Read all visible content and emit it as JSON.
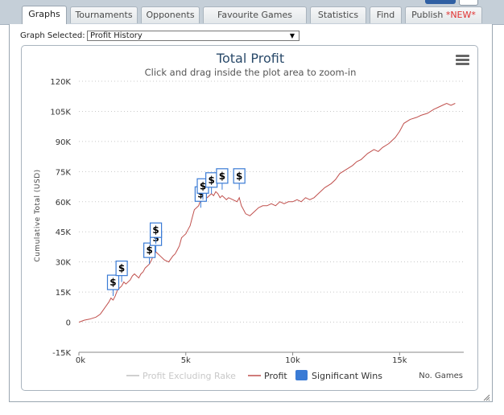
{
  "tabs": [
    {
      "label": "Graphs",
      "active": true
    },
    {
      "label": "Tournaments"
    },
    {
      "label": "Opponents"
    },
    {
      "label": "Favourite Games"
    },
    {
      "label": "Statistics"
    },
    {
      "label": "Find"
    },
    {
      "label": "Publish ",
      "badge": "*NEW*"
    }
  ],
  "graph_select": {
    "label": "Graph Selected:",
    "value": "Profit History"
  },
  "chart_data": {
    "type": "line",
    "title": "Total Profit",
    "subtitle": "Click and drag inside the plot area to zoom-in",
    "ylabel": "Cumulative Total (USD)",
    "xlabel": "No. Games",
    "x_ticks": [
      "0k",
      "5k",
      "10k",
      "15k"
    ],
    "x_tick_values": [
      0,
      5000,
      10000,
      15000
    ],
    "y_ticks": [
      "120K",
      "105K",
      "90K",
      "75K",
      "60K",
      "45K",
      "30K",
      "15K",
      "0",
      "-15K"
    ],
    "y_tick_values": [
      120000,
      105000,
      90000,
      75000,
      60000,
      45000,
      30000,
      15000,
      0,
      -15000
    ],
    "xlim": [
      0,
      18000
    ],
    "ylim": [
      -15000,
      120000
    ],
    "grid": true,
    "legend_position": "bottom-center",
    "legend": [
      {
        "name": "Profit Excluding Rake",
        "color": "#d0d0d0",
        "hidden": true
      },
      {
        "name": "Profit",
        "color": "#c0504d"
      },
      {
        "name": "Significant Wins",
        "color": "#3a7bd5"
      }
    ],
    "series": [
      {
        "name": "Profit",
        "color": "#c0504d",
        "x": [
          0,
          250,
          500,
          800,
          1000,
          1200,
          1400,
          1500,
          1600,
          1700,
          1800,
          1900,
          2000,
          2100,
          2200,
          2400,
          2500,
          2600,
          2800,
          2900,
          3000,
          3100,
          3200,
          3300,
          3400,
          3500,
          3600,
          3700,
          3800,
          3900,
          4000,
          4200,
          4400,
          4500,
          4600,
          4700,
          4800,
          4900,
          5000,
          5100,
          5200,
          5300,
          5400,
          5500,
          5600,
          5700,
          5800,
          5900,
          6000,
          6100,
          6200,
          6300,
          6400,
          6500,
          6600,
          6700,
          6800,
          6900,
          7000,
          7200,
          7400,
          7500,
          7600,
          7700,
          7800,
          8000,
          8200,
          8400,
          8600,
          8800,
          9000,
          9200,
          9400,
          9600,
          9800,
          10000,
          10200,
          10400,
          10600,
          10800,
          11000,
          11200,
          11500,
          11800,
          12000,
          12200,
          12500,
          12800,
          13000,
          13200,
          13500,
          13800,
          14000,
          14200,
          14500,
          14800,
          15000,
          15200,
          15500,
          15800,
          16000,
          16300,
          16600,
          16800,
          17000,
          17200,
          17400,
          17600
        ],
        "y": [
          0,
          1000,
          1500,
          2500,
          4000,
          7000,
          10000,
          12000,
          11000,
          13000,
          16000,
          17000,
          18000,
          20000,
          19000,
          21000,
          23000,
          24000,
          22000,
          24000,
          25000,
          27000,
          28000,
          29000,
          31000,
          34000,
          35000,
          34000,
          33000,
          32000,
          31000,
          30000,
          33000,
          34000,
          36000,
          38000,
          42000,
          43000,
          44000,
          46000,
          48000,
          52000,
          56000,
          57000,
          58000,
          61000,
          62000,
          63000,
          62000,
          63000,
          64000,
          63000,
          65000,
          64000,
          62000,
          63000,
          62000,
          61000,
          62000,
          61000,
          60000,
          62000,
          58000,
          56000,
          54000,
          53000,
          55000,
          57000,
          58000,
          58000,
          59000,
          58000,
          60000,
          59000,
          60000,
          60000,
          61000,
          60000,
          62000,
          61000,
          62000,
          64000,
          67000,
          69000,
          71000,
          74000,
          76000,
          78000,
          80000,
          81000,
          84000,
          86000,
          85000,
          87000,
          89000,
          92000,
          95000,
          99000,
          101000,
          102000,
          103000,
          104000,
          106000,
          107000,
          108000,
          109000,
          108000,
          109000
        ]
      },
      {
        "name": "Significant Wins",
        "type": "flags",
        "color": "#3a7bd5",
        "label": "$",
        "points": [
          {
            "x": 1600,
            "y": 13000
          },
          {
            "x": 2000,
            "y": 20000
          },
          {
            "x": 3300,
            "y": 29000
          },
          {
            "x": 3600,
            "y": 35000
          },
          {
            "x": 3600,
            "y": 39000
          },
          {
            "x": 5700,
            "y": 57000
          },
          {
            "x": 5800,
            "y": 61000
          },
          {
            "x": 6200,
            "y": 64000
          },
          {
            "x": 6700,
            "y": 66000
          },
          {
            "x": 7500,
            "y": 66000
          }
        ]
      }
    ]
  }
}
